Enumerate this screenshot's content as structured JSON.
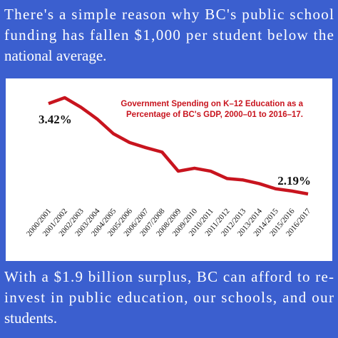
{
  "headline": [
    "There's a simple reason why BC's public school",
    "funding has fallen $1,000 per student below the",
    "national average."
  ],
  "footer": [
    "With a $1.9 billion surplus, BC can afford to re-",
    "invest in public education, our schools, and our",
    "students."
  ],
  "chart_data": {
    "type": "line",
    "title": [
      "Government Spending on K–12 Education as a",
      "Percentage of BC's GDP, 2000–01 to 2016–17."
    ],
    "categories": [
      "2000/2001",
      "2001/2002",
      "2002/2003",
      "2003/2004",
      "2004/2005",
      "2005/2006",
      "2006/2007",
      "2007/2008",
      "2008/2009",
      "2009/2010",
      "2010/2011",
      "2011/2012",
      "2012/2013",
      "2013/2014",
      "2014/2015",
      "2015/2016",
      "2016/2017"
    ],
    "series": [
      {
        "name": "Government Spending on K–12 Education",
        "color": "#c8141e",
        "values": [
          3.42,
          3.5,
          3.37,
          3.21,
          3.01,
          2.89,
          2.82,
          2.76,
          2.5,
          2.54,
          2.5,
          2.4,
          2.38,
          2.33,
          2.26,
          2.23,
          2.19
        ],
        "value_labels": [
          "3.42%",
          null,
          null,
          null,
          null,
          null,
          null,
          null,
          null,
          null,
          null,
          null,
          null,
          null,
          null,
          null,
          "2.19%"
        ]
      }
    ]
  }
}
